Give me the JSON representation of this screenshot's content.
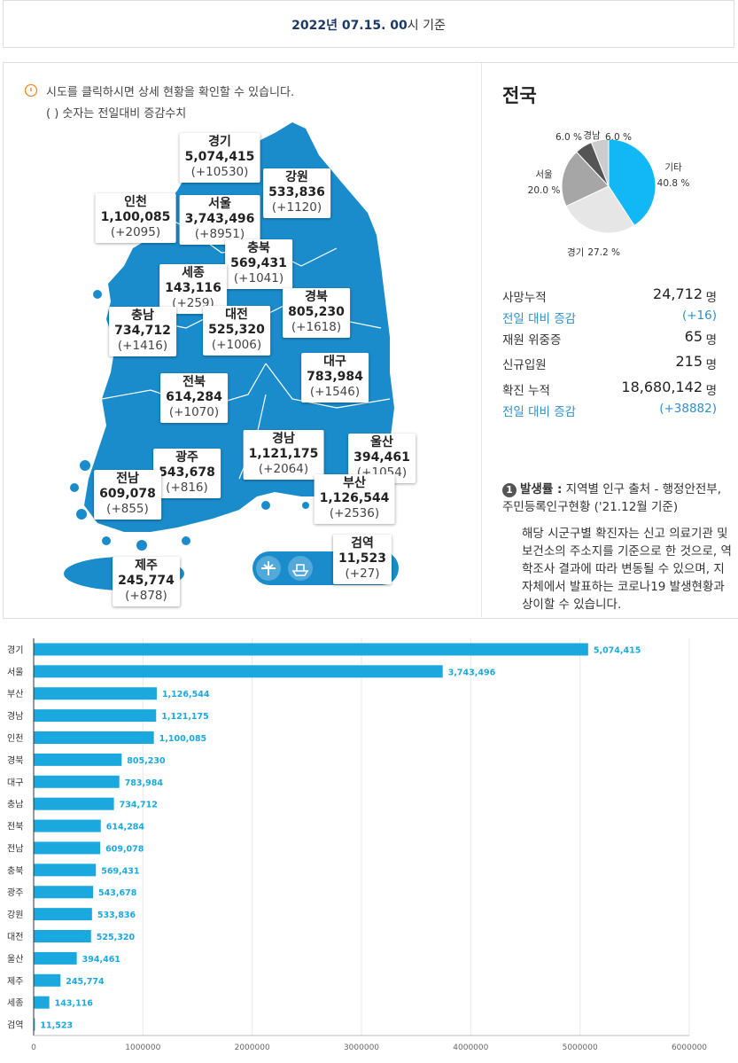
{
  "header": {
    "date": "2022년 07.15. 00",
    "suffix": "시 기준"
  },
  "notice": {
    "line1": "시도를 클릭하시면 상세 현황을 확인할 수 있습니다.",
    "line2": "( ) 숫자는 전일대비 증감수치"
  },
  "map": {
    "regions": [
      {
        "name": "경기",
        "cases": "5,074,415",
        "change": "(+10530)"
      },
      {
        "name": "강원",
        "cases": "533,836",
        "change": "(+1120)"
      },
      {
        "name": "인천",
        "cases": "1,100,085",
        "change": "(+2095)"
      },
      {
        "name": "서울",
        "cases": "3,743,496",
        "change": "(+8951)"
      },
      {
        "name": "충북",
        "cases": "569,431",
        "change": "(+1041)"
      },
      {
        "name": "세종",
        "cases": "143,116",
        "change": "(+259)"
      },
      {
        "name": "경북",
        "cases": "805,230",
        "change": "(+1618)"
      },
      {
        "name": "충남",
        "cases": "734,712",
        "change": "(+1416)"
      },
      {
        "name": "대전",
        "cases": "525,320",
        "change": "(+1006)"
      },
      {
        "name": "대구",
        "cases": "783,984",
        "change": "(+1546)"
      },
      {
        "name": "전북",
        "cases": "614,284",
        "change": "(+1070)"
      },
      {
        "name": "경남",
        "cases": "1,121,175",
        "change": "(+2064)"
      },
      {
        "name": "울산",
        "cases": "394,461",
        "change": "(+1054)"
      },
      {
        "name": "광주",
        "cases": "543,678",
        "change": "(+816)"
      },
      {
        "name": "전남",
        "cases": "609,078",
        "change": "(+855)"
      },
      {
        "name": "부산",
        "cases": "1,126,544",
        "change": "(+2536)"
      },
      {
        "name": "검역",
        "cases": "11,523",
        "change": "(+27)"
      },
      {
        "name": "제주",
        "cases": "245,774",
        "change": "(+878)"
      }
    ]
  },
  "summary": {
    "title": "전국",
    "rows": [
      {
        "label": "사망누적",
        "value": "24,712",
        "unit": "명"
      },
      {
        "label": "전일 대비 증감",
        "value": "(+16)"
      },
      {
        "label": "재원 위중증",
        "value": "65",
        "unit": "명"
      },
      {
        "label": "신규입원",
        "value": "215",
        "unit": "명"
      },
      {
        "label": "확진 누적",
        "value": "18,680,142",
        "unit": "명"
      },
      {
        "label": "전일 대비 증감",
        "value": "(+38882)"
      }
    ],
    "note": {
      "number": "1",
      "term": "발생률 :",
      "source": " 지역별 인구 출처 - 행정안전부, 주민등록인구현황 ('21.12월 기준)",
      "text": "해당 시군구별 확진자는 신고 의료기관 및 보건소의 주소지를 기준으로 한 것으로, 역학조사 결과에 따라 변동될 수 있으며, 지자체에서 발표하는 코로나19 발생현황과 상이할 수 있습니다."
    }
  },
  "chart_data": [
    {
      "type": "pie",
      "categories": [
        "기타",
        "경기",
        "서울",
        null,
        "경남"
      ],
      "values": [
        40.8,
        27.2,
        20.0,
        6.0,
        6.0
      ],
      "value_labels": [
        "40.8 %",
        "27.2 %",
        "20.0 %",
        "6.0 %",
        "6.0 %"
      ],
      "colors": [
        "#12b8f5",
        "#e6e6e6",
        "#a6a6a6",
        "#555555",
        "#cccccc"
      ]
    },
    {
      "type": "bar",
      "orientation": "horizontal",
      "categories": [
        "경기",
        "서울",
        "부산",
        "경남",
        "인천",
        "경북",
        "대구",
        "충남",
        "전북",
        "전남",
        "충북",
        "광주",
        "강원",
        "대전",
        "울산",
        "제주",
        "세종",
        "검역"
      ],
      "values": [
        5074415,
        3743496,
        1126544,
        1121175,
        1100085,
        805230,
        783984,
        734712,
        614284,
        609078,
        569431,
        543678,
        533836,
        525320,
        394461,
        245774,
        143116,
        11523
      ],
      "value_labels": [
        "5,074,415",
        "3,743,496",
        "1,126,544",
        "1,121,175",
        "1,100,085",
        "805,230",
        "783,984",
        "734,712",
        "614,284",
        "609,078",
        "569,431",
        "543,678",
        "533,836",
        "525,320",
        "394,461",
        "245,774",
        "143,116",
        "11,523"
      ],
      "color": "#1ba8df",
      "xlim": [
        0,
        6000000
      ],
      "xticks": [
        0,
        1000000,
        2000000,
        3000000,
        4000000,
        5000000,
        6000000
      ],
      "grid": true
    }
  ]
}
